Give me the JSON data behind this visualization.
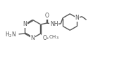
{
  "line_color": "#555555",
  "line_width": 1.0,
  "font_size": 5.5,
  "fig_width": 1.76,
  "fig_height": 0.83,
  "dpi": 100,
  "xlim": [
    0,
    10.5
  ],
  "ylim": [
    0,
    5
  ]
}
